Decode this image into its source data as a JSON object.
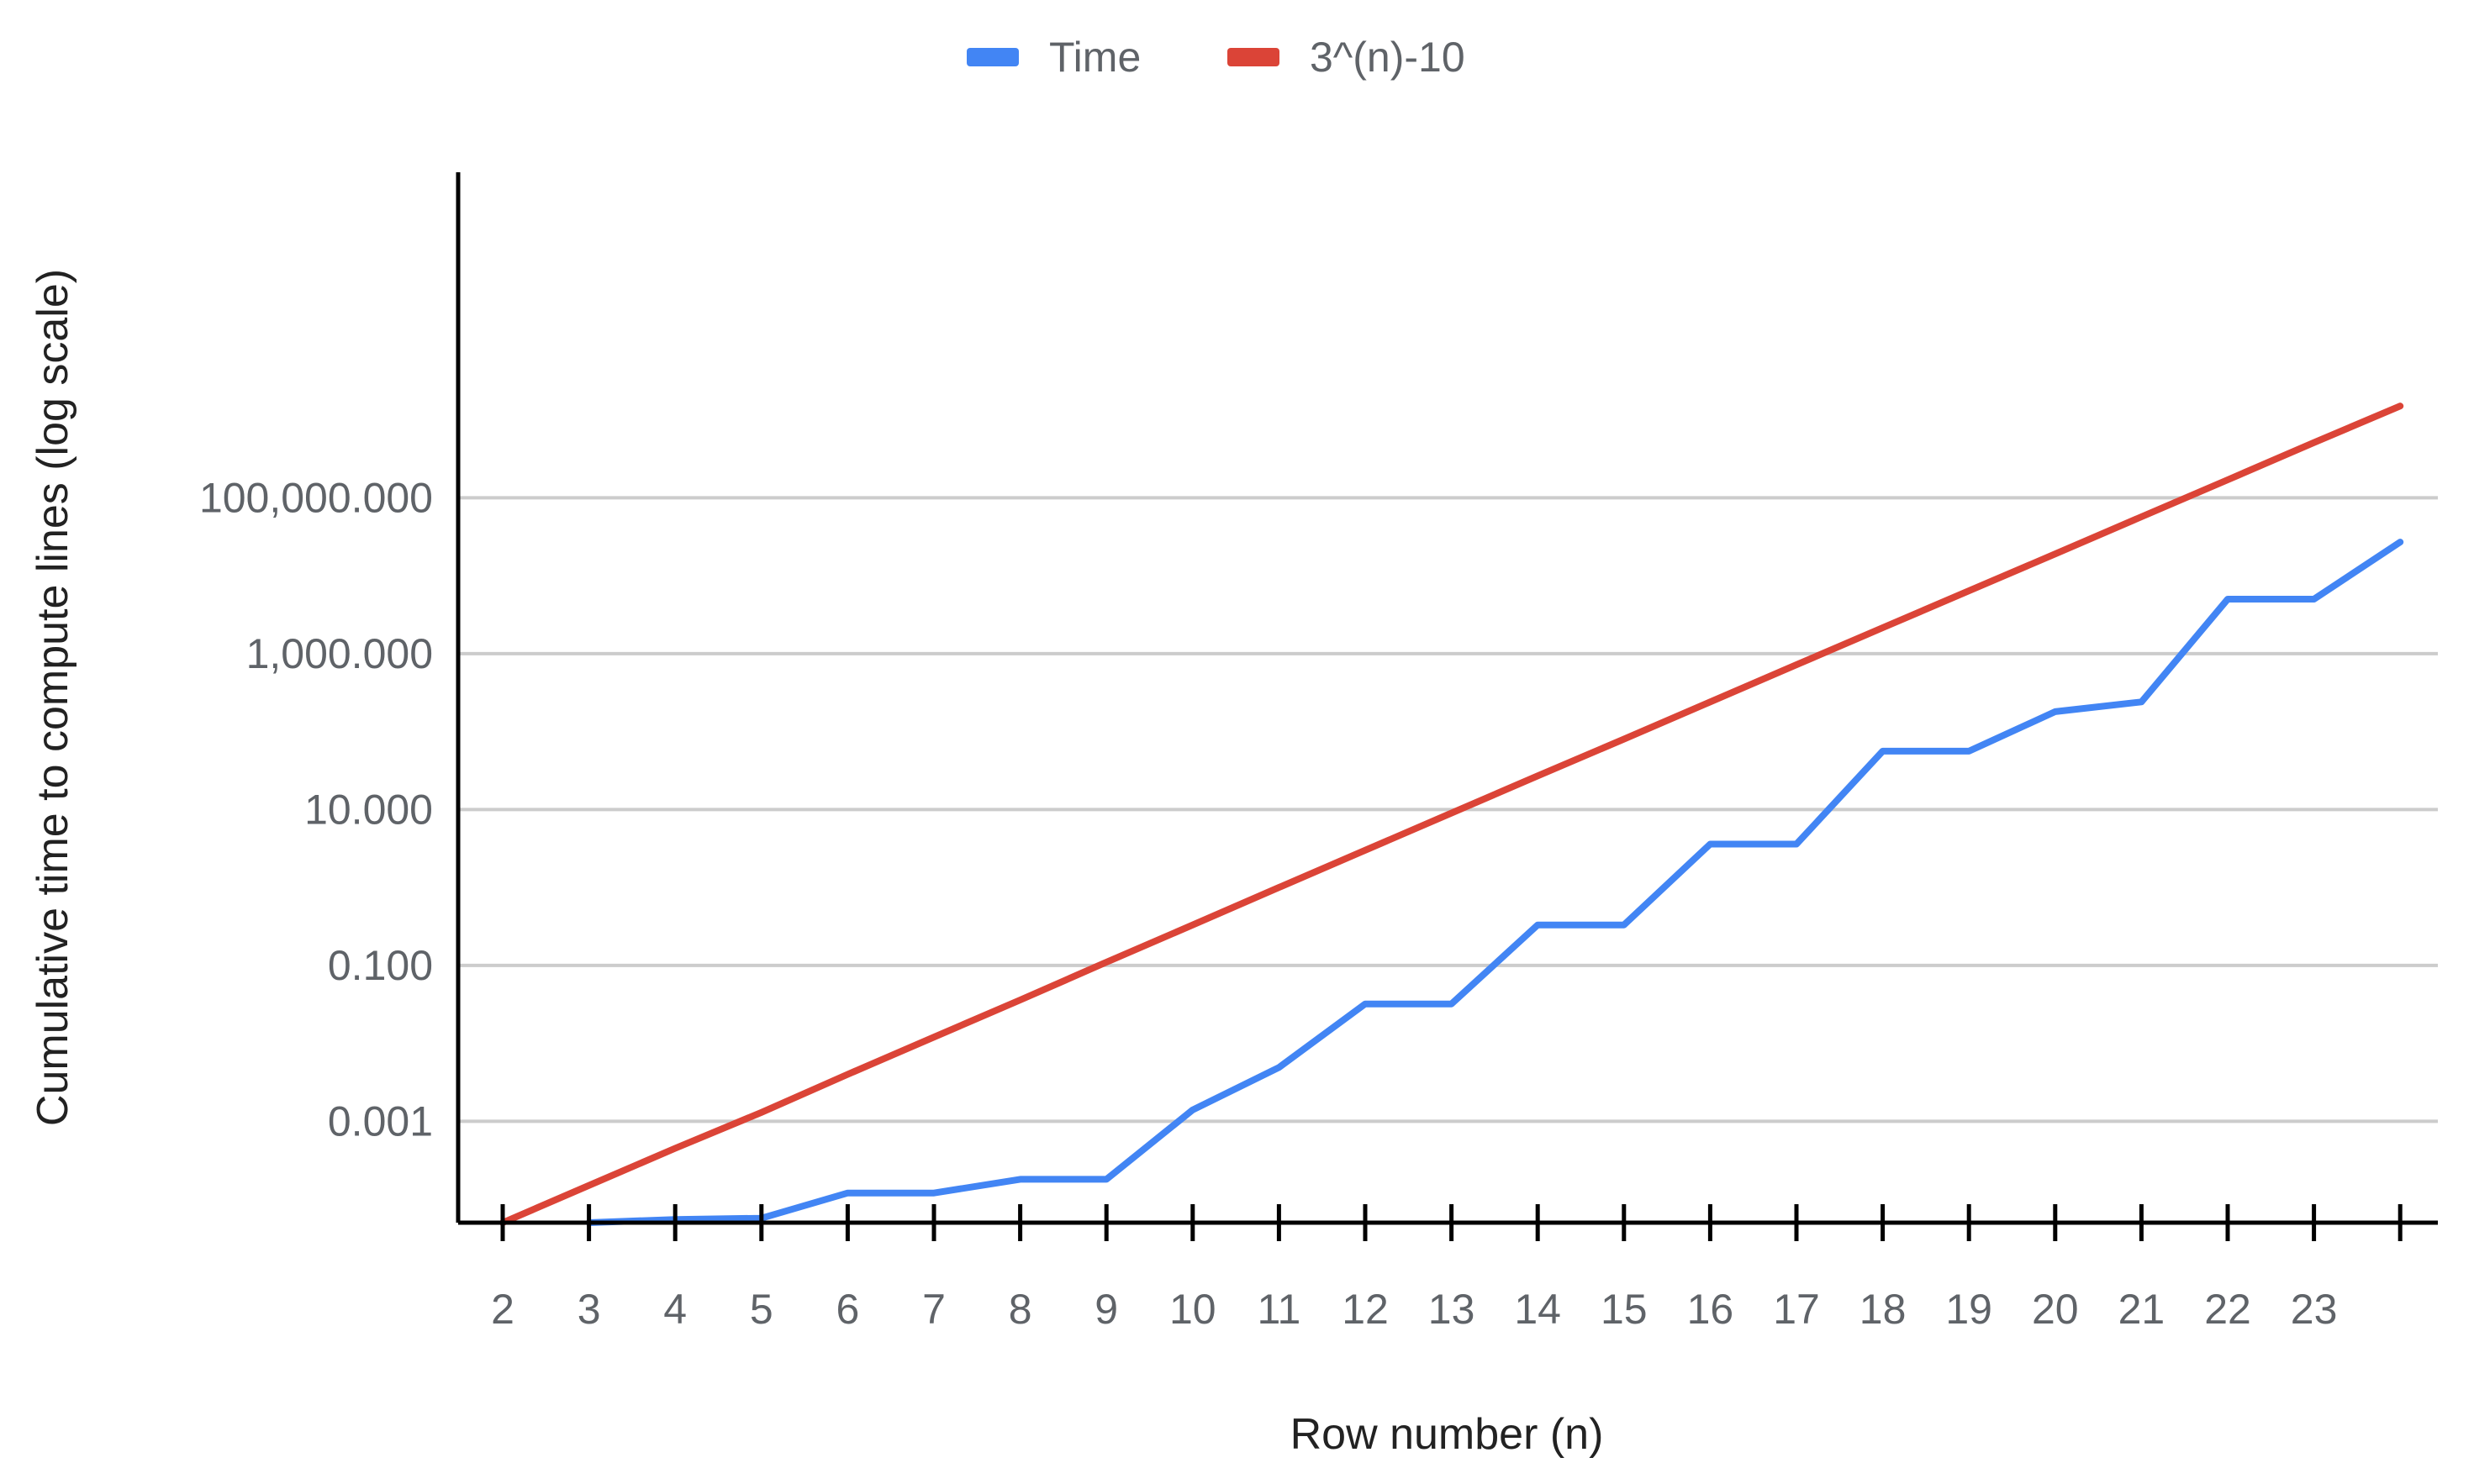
{
  "chart_data": {
    "type": "line",
    "title": "",
    "xlabel": "Row number (n)",
    "ylabel": "Cumulative time to compute lines (log scale)",
    "y_scale": "log",
    "ylim": [
      5e-05,
      1500000000
    ],
    "y_ticks": [
      0.001,
      0.1,
      10,
      1000,
      100000
    ],
    "y_tick_labels": [
      "0.001",
      "0.100",
      "10.000",
      "1,000.000",
      "100,000.000"
    ],
    "x": [
      2,
      3,
      4,
      5,
      6,
      7,
      8,
      9,
      10,
      11,
      12,
      13,
      14,
      15,
      16,
      17,
      18,
      19,
      20,
      21,
      22,
      23,
      24
    ],
    "x_tick_labels": [
      "2",
      "3",
      "4",
      "5",
      "6",
      "7",
      "8",
      "9",
      "10",
      "11",
      "12",
      "13",
      "14",
      "15",
      "16",
      "17",
      "18",
      "19",
      "20",
      "21",
      "22",
      "23"
    ],
    "grid": true,
    "legend_position": "top",
    "series": [
      {
        "name": "Time",
        "color": "#4285f4",
        "values": [
          null,
          5e-05,
          5.5e-05,
          5.7e-05,
          0.00012,
          0.00012,
          0.00018,
          0.00018,
          0.0014,
          0.0049,
          0.032,
          0.032,
          0.33,
          0.33,
          3.6,
          3.6,
          56,
          56,
          180,
          240,
          5000,
          5000,
          27000
        ]
      },
      {
        "name": "3^(n)-10",
        "color": "#db4437",
        "values": [
          5e-05,
          0.00015,
          0.00045,
          0.0013,
          0.004,
          0.012,
          0.036,
          0.11,
          0.33,
          1,
          3,
          9,
          27,
          80,
          240,
          720,
          2150,
          6400,
          19000,
          57000,
          170000,
          510000,
          1500000
        ]
      }
    ]
  }
}
